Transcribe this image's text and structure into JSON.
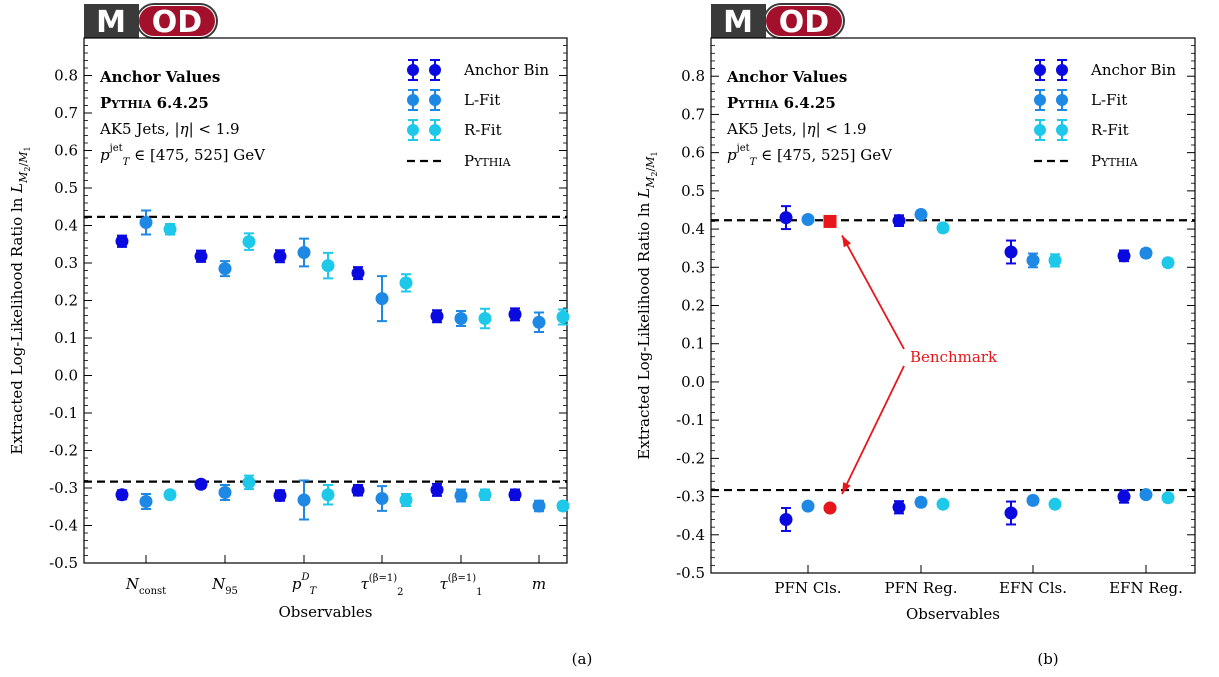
{
  "logo_text": "MOD",
  "colors": {
    "anchor": "#0a0ae0",
    "lfit": "#1e88e5",
    "rfit": "#1ec8e8",
    "benchmark": "#e8161b",
    "logo_dark": "#3a3a3a",
    "logo_red": "#a3102b"
  },
  "legend": [
    {
      "key": "anchor",
      "label": "Anchor Bin"
    },
    {
      "key": "lfit",
      "label": "L-Fit"
    },
    {
      "key": "rfit",
      "label": "R-Fit"
    },
    {
      "key": "pythia",
      "label": "Pythia"
    }
  ],
  "chart_data": [
    {
      "type": "scatter",
      "panel_label": "(a)",
      "xlabel": "Observables",
      "ylabel": "Extracted Log-Likelihood Ratio ln L_{M2/M1}",
      "ylim": [
        -0.5,
        0.9
      ],
      "yticks": [
        "-0.5",
        "-0.4",
        "-0.3",
        "-0.2",
        "-0.1",
        "0.0",
        "0.1",
        "0.2",
        "0.3",
        "0.4",
        "0.5",
        "0.6",
        "0.7",
        "0.8"
      ],
      "annotations": [
        "Anchor Values",
        "Pythia 6.4.25",
        "AK5 Jets, |η| < 1.9",
        "p_T^jet ∈ [475, 525] GeV"
      ],
      "reference_lines": [
        0.423,
        -0.283
      ],
      "categories": [
        "N_const",
        "N_95",
        "p_T^D",
        "τ_2^(β=1)",
        "τ_1^(β=1)",
        "m"
      ],
      "series": [
        {
          "name": "Anchor Bin",
          "upper": [
            [
              0.358,
              0.015
            ],
            [
              0.318,
              0.015
            ],
            [
              0.318,
              0.016
            ],
            [
              0.273,
              0.016
            ],
            [
              0.158,
              0.016
            ],
            [
              0.163,
              0.016
            ]
          ],
          "lower": [
            [
              -0.318,
              0.012
            ],
            [
              -0.29,
              0.01
            ],
            [
              -0.32,
              0.014
            ],
            [
              -0.306,
              0.014
            ],
            [
              -0.305,
              0.016
            ],
            [
              -0.318,
              0.014
            ]
          ]
        },
        {
          "name": "L-Fit",
          "upper": [
            [
              0.408,
              0.032
            ],
            [
              0.285,
              0.02
            ],
            [
              0.328,
              0.037
            ],
            [
              0.205,
              0.06
            ],
            [
              0.152,
              0.02
            ],
            [
              0.142,
              0.026
            ]
          ],
          "lower": [
            [
              -0.336,
              0.02
            ],
            [
              -0.312,
              0.02
            ],
            [
              -0.332,
              0.052
            ],
            [
              -0.328,
              0.033
            ],
            [
              -0.32,
              0.016
            ],
            [
              -0.348,
              0.014
            ]
          ]
        },
        {
          "name": "R-Fit",
          "upper": [
            [
              0.39,
              0.014
            ],
            [
              0.357,
              0.022
            ],
            [
              0.293,
              0.034
            ],
            [
              0.247,
              0.023
            ],
            [
              0.152,
              0.026
            ],
            [
              0.156,
              0.02
            ]
          ],
          "lower": [
            [
              -0.318,
              0.01
            ],
            [
              -0.285,
              0.018
            ],
            [
              -0.318,
              0.026
            ],
            [
              -0.332,
              0.016
            ],
            [
              -0.318,
              0.014
            ],
            [
              -0.348,
              0.01
            ]
          ]
        }
      ]
    },
    {
      "type": "scatter",
      "panel_label": "(b)",
      "xlabel": "Observables",
      "ylabel": "Extracted Log-Likelihood Ratio ln L_{M2/M1}",
      "ylim": [
        -0.5,
        0.9
      ],
      "yticks": [
        "-0.5",
        "-0.4",
        "-0.3",
        "-0.2",
        "-0.1",
        "0.0",
        "0.1",
        "0.2",
        "0.3",
        "0.4",
        "0.5",
        "0.6",
        "0.7",
        "0.8"
      ],
      "annotations": [
        "Anchor Values",
        "Pythia 6.4.25",
        "AK5 Jets, |η| < 1.9",
        "p_T^jet ∈ [475, 525] GeV"
      ],
      "reference_lines": [
        0.423,
        -0.283
      ],
      "categories": [
        "PFN Cls.",
        "PFN Reg.",
        "EFN Cls.",
        "EFN Reg."
      ],
      "benchmark_label": "Benchmark",
      "benchmark_points": [
        0.42,
        -0.33
      ],
      "series": [
        {
          "name": "Anchor Bin",
          "upper": [
            [
              0.43,
              0.03
            ],
            [
              0.422,
              0.014
            ],
            [
              0.34,
              0.03
            ],
            [
              0.33,
              0.014
            ]
          ],
          "lower": [
            [
              -0.36,
              0.03
            ],
            [
              -0.328,
              0.016
            ],
            [
              -0.343,
              0.03
            ],
            [
              -0.3,
              0.016
            ]
          ]
        },
        {
          "name": "L-Fit",
          "upper": [
            [
              0.425,
              0.008
            ],
            [
              0.438,
              0.01
            ],
            [
              0.318,
              0.018
            ],
            [
              0.337,
              0.01
            ]
          ],
          "lower": [
            [
              -0.325,
              0.008
            ],
            [
              -0.315,
              0.01
            ],
            [
              -0.31,
              0.01
            ],
            [
              -0.295,
              0.008
            ]
          ]
        },
        {
          "name": "R-Fit",
          "upper": [
            [
              0.42,
              0.008
            ],
            [
              0.403,
              0.01
            ],
            [
              0.318,
              0.016
            ],
            [
              0.312,
              0.01
            ]
          ],
          "lower": [
            [
              -0.33,
              0.006
            ],
            [
              -0.32,
              0.006
            ],
            [
              -0.32,
              0.008
            ],
            [
              -0.303,
              0.01
            ]
          ]
        }
      ]
    }
  ]
}
